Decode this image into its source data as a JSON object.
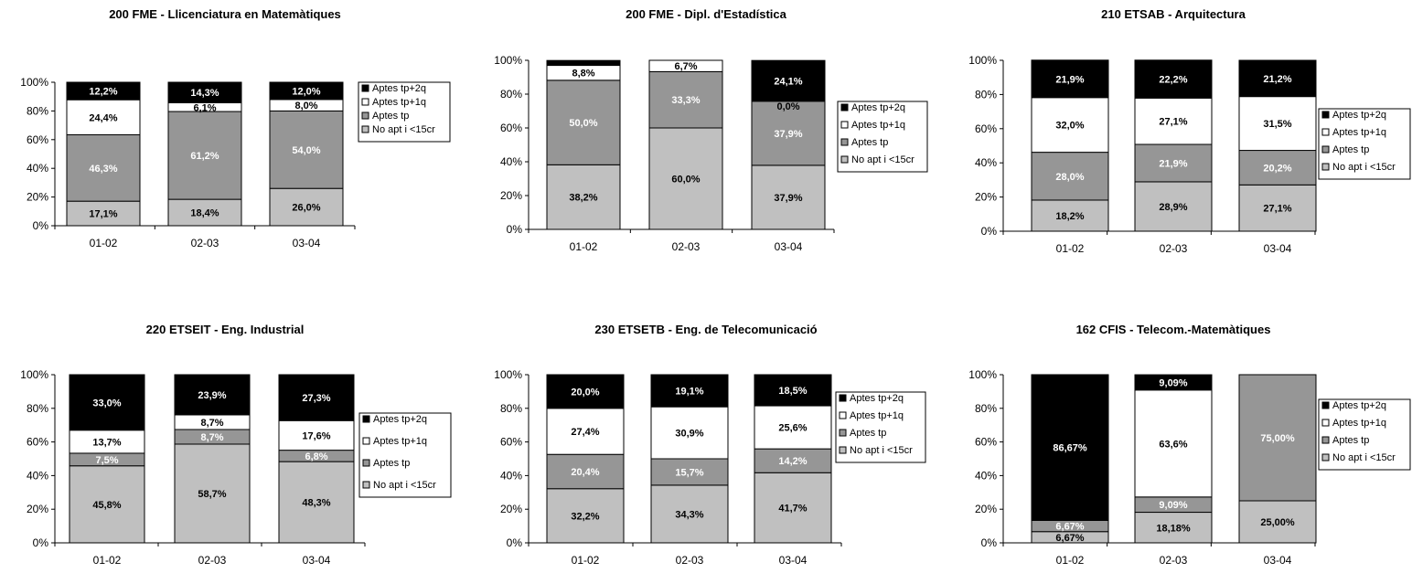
{
  "colors": {
    "Aptes tp+2q": "#000000",
    "Aptes tp+1q": "#ffffff",
    "Aptes tp": "#969696",
    "No apt i <15cr": "#c0c0c0"
  },
  "chart_data": [
    {
      "type": "bar",
      "stacked": true,
      "title": "200 FME - Llicenciatura en Matemàtiques",
      "categories": [
        "01-02",
        "02-03",
        "03-04"
      ],
      "yticks": [
        "0%",
        "20%",
        "40%",
        "60%",
        "80%",
        "100%"
      ],
      "ylim": [
        0,
        100
      ],
      "legend_position": "right",
      "series": [
        {
          "name": "No apt i <15cr",
          "values": [
            17.1,
            18.4,
            26.0
          ],
          "labels": [
            "17,1%",
            "18,4%",
            "26,0%"
          ]
        },
        {
          "name": "Aptes tp",
          "values": [
            46.3,
            61.2,
            54.0
          ],
          "labels": [
            "46,3%",
            "61,2%",
            "54,0%"
          ]
        },
        {
          "name": "Aptes tp+1q",
          "values": [
            24.4,
            6.1,
            8.0
          ],
          "labels": [
            "24,4%",
            "6,1%",
            "8,0%"
          ]
        },
        {
          "name": "Aptes tp+2q",
          "values": [
            12.2,
            14.3,
            12.0
          ],
          "labels": [
            "12,2%",
            "14,3%",
            "12,0%"
          ]
        }
      ],
      "legend": [
        "Aptes tp+2q",
        "Aptes tp+1q",
        "Aptes tp",
        "No apt i <15cr"
      ]
    },
    {
      "type": "bar",
      "stacked": true,
      "title": "200 FME - Dipl. d'Estadística",
      "categories": [
        "01-02",
        "02-03",
        "03-04"
      ],
      "yticks": [
        "0%",
        "20%",
        "40%",
        "60%",
        "80%",
        "100%"
      ],
      "ylim": [
        0,
        100
      ],
      "legend_position": "right",
      "series": [
        {
          "name": "No apt i <15cr",
          "values": [
            38.2,
            60.0,
            37.9
          ],
          "labels": [
            "38,2%",
            "60,0%",
            "37,9%"
          ]
        },
        {
          "name": "Aptes tp",
          "values": [
            50.0,
            33.3,
            37.9
          ],
          "labels": [
            "50,0%",
            "33,3%",
            "37,9%"
          ]
        },
        {
          "name": "Aptes tp+1q",
          "values": [
            8.8,
            6.7,
            0.0
          ],
          "labels": [
            "8,8%",
            "6,7%",
            "0,0%"
          ]
        },
        {
          "name": "Aptes tp+2q",
          "values": [
            2.9,
            0.0,
            24.1
          ],
          "labels": [
            "2,9%",
            "0,0%",
            "24,1%"
          ]
        }
      ],
      "legend": [
        "Aptes tp+2q",
        "Aptes tp+1q",
        "Aptes tp",
        "No apt i <15cr"
      ]
    },
    {
      "type": "bar",
      "stacked": true,
      "title": "210 ETSAB - Arquitectura",
      "categories": [
        "01-02",
        "02-03",
        "03-04"
      ],
      "yticks": [
        "0%",
        "20%",
        "40%",
        "60%",
        "80%",
        "100%"
      ],
      "ylim": [
        0,
        100
      ],
      "legend_position": "right",
      "series": [
        {
          "name": "No apt i <15cr",
          "values": [
            18.2,
            28.9,
            27.1
          ],
          "labels": [
            "18,2%",
            "28,9%",
            "27,1%"
          ]
        },
        {
          "name": "Aptes tp",
          "values": [
            28.0,
            21.9,
            20.2
          ],
          "labels": [
            "28,0%",
            "21,9%",
            "20,2%"
          ]
        },
        {
          "name": "Aptes tp+1q",
          "values": [
            32.0,
            27.1,
            31.5
          ],
          "labels": [
            "32,0%",
            "27,1%",
            "31,5%"
          ]
        },
        {
          "name": "Aptes tp+2q",
          "values": [
            21.9,
            22.2,
            21.2
          ],
          "labels": [
            "21,9%",
            "22,2%",
            "21,2%"
          ]
        }
      ],
      "legend": [
        "Aptes tp+2q",
        "Aptes tp+1q",
        "Aptes tp",
        "No apt i <15cr"
      ]
    },
    {
      "type": "bar",
      "stacked": true,
      "title": "220 ETSEIT - Eng. Industrial",
      "categories": [
        "01-02",
        "02-03",
        "03-04"
      ],
      "yticks": [
        "0%",
        "20%",
        "40%",
        "60%",
        "80%",
        "100%"
      ],
      "ylim": [
        0,
        100
      ],
      "legend_position": "right",
      "series": [
        {
          "name": "No apt i <15cr",
          "values": [
            45.8,
            58.7,
            48.3
          ],
          "labels": [
            "45,8%",
            "58,7%",
            "48,3%"
          ]
        },
        {
          "name": "Aptes tp",
          "values": [
            7.5,
            8.7,
            6.8
          ],
          "labels": [
            "7,5%",
            "8,7%",
            "6,8%"
          ]
        },
        {
          "name": "Aptes tp+1q",
          "values": [
            13.7,
            8.7,
            17.6
          ],
          "labels": [
            "13,7%",
            "8,7%",
            "17,6%"
          ]
        },
        {
          "name": "Aptes tp+2q",
          "values": [
            33.0,
            23.9,
            27.3
          ],
          "labels": [
            "33,0%",
            "23,9%",
            "27,3%"
          ]
        }
      ],
      "legend": [
        "Aptes tp+2q",
        "Aptes tp+1q",
        "Aptes tp",
        "No apt i <15cr"
      ]
    },
    {
      "type": "bar",
      "stacked": true,
      "title": "230 ETSETB  - Eng. de Telecomunicació",
      "categories": [
        "01-02",
        "02-03",
        "03-04"
      ],
      "yticks": [
        "0%",
        "20%",
        "40%",
        "60%",
        "80%",
        "100%"
      ],
      "ylim": [
        0,
        100
      ],
      "legend_position": "right",
      "series": [
        {
          "name": "No apt i <15cr",
          "values": [
            32.2,
            34.3,
            41.7
          ],
          "labels": [
            "32,2%",
            "34,3%",
            "41,7%"
          ]
        },
        {
          "name": "Aptes tp",
          "values": [
            20.4,
            15.7,
            14.2
          ],
          "labels": [
            "20,4%",
            "15,7%",
            "14,2%"
          ]
        },
        {
          "name": "Aptes tp+1q",
          "values": [
            27.4,
            30.9,
            25.6
          ],
          "labels": [
            "27,4%",
            "30,9%",
            "25,6%"
          ]
        },
        {
          "name": "Aptes tp+2q",
          "values": [
            20.0,
            19.1,
            18.5
          ],
          "labels": [
            "20,0%",
            "19,1%",
            "18,5%"
          ]
        }
      ],
      "legend": [
        "Aptes tp+2q",
        "Aptes tp+1q",
        "Aptes tp",
        "No apt i <15cr"
      ]
    },
    {
      "type": "bar",
      "stacked": true,
      "title": "162 CFIS - Telecom.-Matemàtiques",
      "categories": [
        "01-02",
        "02-03",
        "03-04"
      ],
      "yticks": [
        "0%",
        "20%",
        "40%",
        "60%",
        "80%",
        "100%"
      ],
      "ylim": [
        0,
        100
      ],
      "legend_position": "right",
      "series": [
        {
          "name": "No apt i <15cr",
          "values": [
            6.67,
            18.18,
            25.0
          ],
          "labels": [
            "6,67%",
            "18,18%",
            "25,00%"
          ]
        },
        {
          "name": "Aptes tp",
          "values": [
            6.67,
            9.09,
            75.0
          ],
          "labels": [
            "6,67%",
            "9,09%",
            "75,00%"
          ]
        },
        {
          "name": "Aptes tp+1q",
          "values": [
            0,
            63.6,
            0
          ],
          "labels": [
            "",
            "63,6%",
            ""
          ]
        },
        {
          "name": "Aptes tp+2q",
          "values": [
            86.67,
            9.09,
            0
          ],
          "labels": [
            "86,67%",
            "9,09%",
            ""
          ]
        }
      ],
      "legend": [
        "Aptes tp+2q",
        "Aptes tp+1q",
        "Aptes tp",
        "No apt i <15cr"
      ]
    }
  ]
}
